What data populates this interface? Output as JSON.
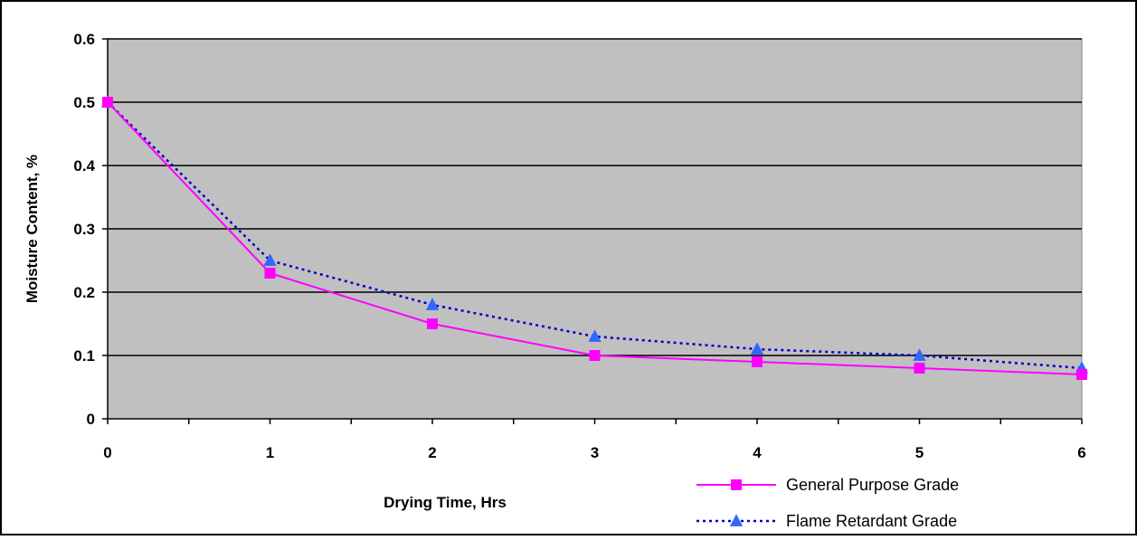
{
  "chart_data": {
    "type": "line",
    "title": "",
    "xlabel": "Drying Time, Hrs",
    "ylabel": "Moisture Content, %",
    "xlim": [
      0,
      6
    ],
    "ylim": [
      0,
      0.6
    ],
    "x_ticks": [
      "0",
      "1",
      "2",
      "3",
      "4",
      "5",
      "6"
    ],
    "y_ticks": [
      "0",
      "0.1",
      "0.2",
      "0.3",
      "0.4",
      "0.5",
      "0.6"
    ],
    "grid": "horizontal",
    "legend_position": "bottom-right",
    "colors": {
      "plot_background": "#c0c0c0",
      "gridline": "#000000"
    },
    "series": [
      {
        "name": "General Purpose Grade",
        "color": "#ff00ff",
        "line_style": "solid",
        "marker": "square",
        "x": [
          0,
          1,
          2,
          3,
          4,
          5,
          6
        ],
        "y": [
          0.5,
          0.23,
          0.15,
          0.1,
          0.09,
          0.08,
          0.07
        ]
      },
      {
        "name": "Flame Retardant Grade",
        "color": "#0000cc",
        "marker_color": "#3366ff",
        "line_style": "dotted",
        "marker": "triangle",
        "x": [
          0,
          1,
          2,
          3,
          4,
          5,
          6
        ],
        "y": [
          0.5,
          0.25,
          0.18,
          0.13,
          0.11,
          0.1,
          0.08
        ]
      }
    ]
  }
}
